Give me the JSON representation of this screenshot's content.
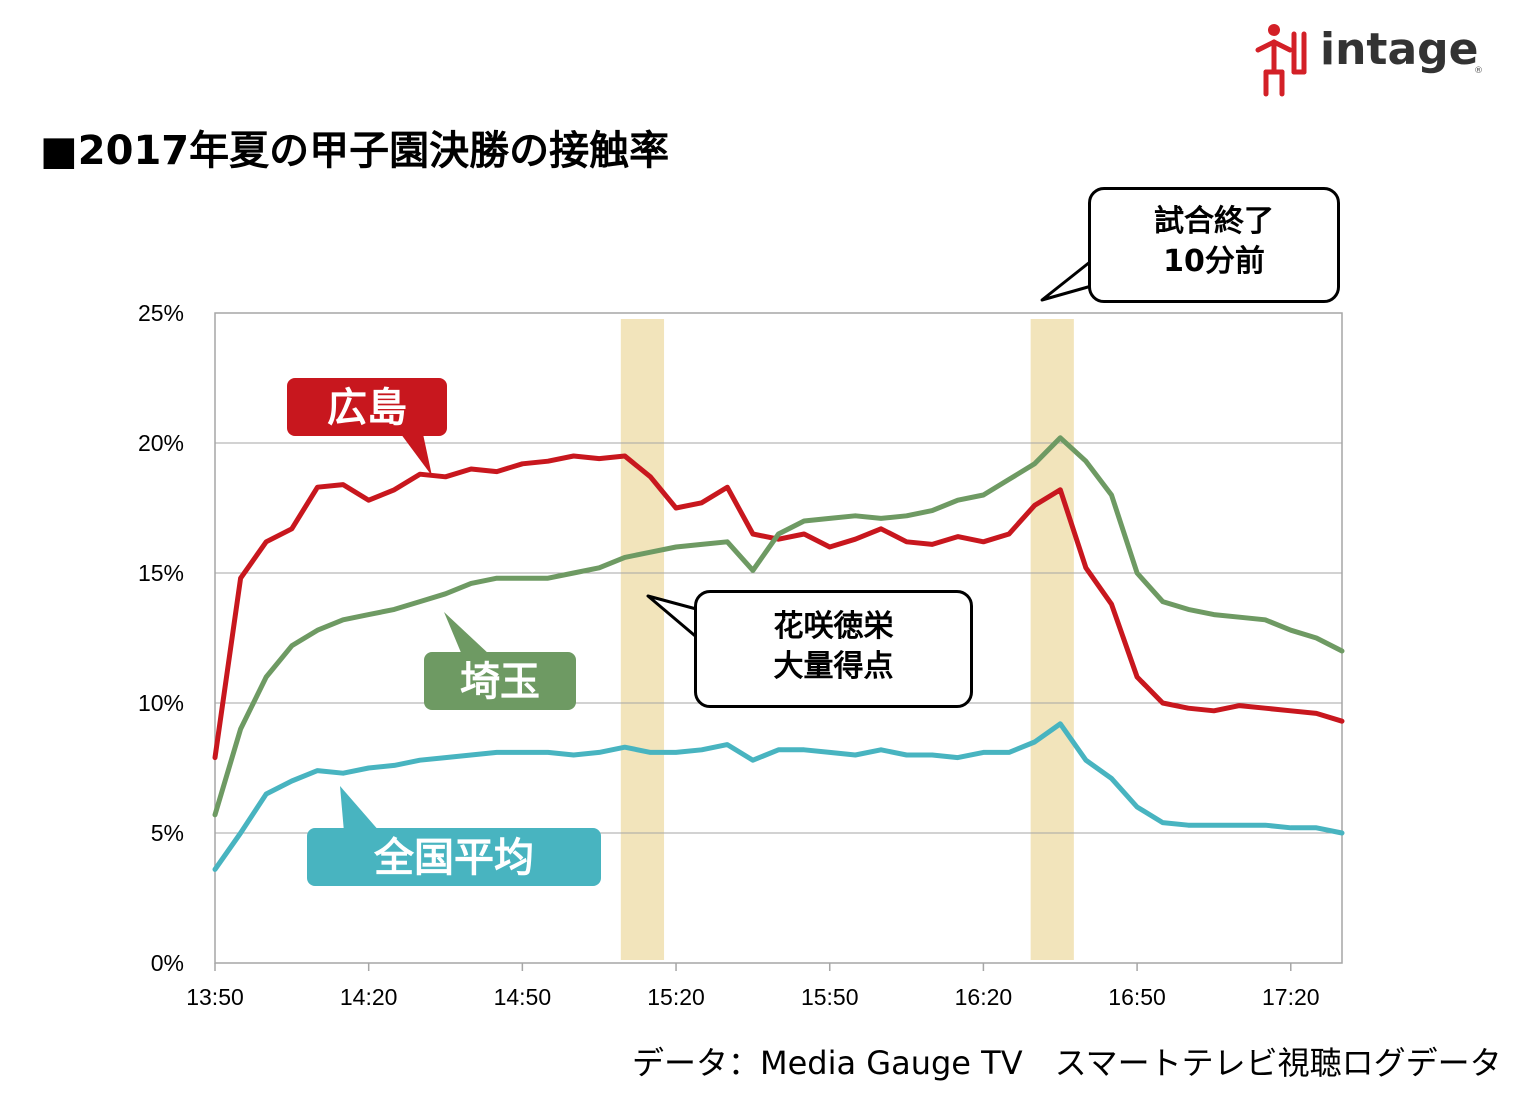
{
  "logo": {
    "text": "intage",
    "mark": "®",
    "icon": "person-figure-icon"
  },
  "title": "■2017年夏の甲子園決勝の接触率",
  "callouts": {
    "end": [
      "試合終了",
      "10分前"
    ],
    "mid": [
      "花咲徳栄",
      "大量得点"
    ]
  },
  "source": "データ：Media Gauge TV　スマートテレビ視聴ログデータ",
  "colors": {
    "hiroshima": "#c8171e",
    "saitama": "#6e9a63",
    "national": "#48b4c0",
    "highlight": "#f2e4bb",
    "grid": "#a6a6a6"
  },
  "chart_data": {
    "type": "line",
    "x_ticks": [
      "13:50",
      "14:20",
      "14:50",
      "15:20",
      "15:50",
      "16:20",
      "16:50",
      "17:20"
    ],
    "y_ticks": [
      "0%",
      "5%",
      "10%",
      "15%",
      "20%",
      "25%"
    ],
    "xlim": [
      "13:50",
      "17:30"
    ],
    "ylim": [
      0,
      25
    ],
    "grid": "horizontal",
    "highlights": [
      {
        "from": "15:10",
        "to": "15:20"
      },
      {
        "from": "16:30",
        "to": "16:40"
      }
    ],
    "x": [
      "13:50",
      "13:55",
      "14:00",
      "14:05",
      "14:10",
      "14:15",
      "14:20",
      "14:25",
      "14:30",
      "14:35",
      "14:40",
      "14:45",
      "14:50",
      "14:55",
      "15:00",
      "15:05",
      "15:10",
      "15:15",
      "15:20",
      "15:25",
      "15:30",
      "15:35",
      "15:40",
      "15:45",
      "15:50",
      "15:55",
      "16:00",
      "16:05",
      "16:10",
      "16:15",
      "16:20",
      "16:25",
      "16:30",
      "16:35",
      "16:40",
      "16:45",
      "16:50",
      "16:55",
      "17:00",
      "17:05",
      "17:10",
      "17:15",
      "17:20",
      "17:25",
      "17:30"
    ],
    "series": [
      {
        "name": "広島",
        "values": [
          7.9,
          14.8,
          16.2,
          16.7,
          18.3,
          18.4,
          17.8,
          18.2,
          18.8,
          18.7,
          19.0,
          18.9,
          19.2,
          19.3,
          19.5,
          19.4,
          19.5,
          18.7,
          17.5,
          17.7,
          18.3,
          16.5,
          16.3,
          16.5,
          16.0,
          16.3,
          16.7,
          16.2,
          16.1,
          16.4,
          16.2,
          16.5,
          17.6,
          18.2,
          15.2,
          13.8,
          11.0,
          10.0,
          9.8,
          9.7,
          9.9,
          9.8,
          9.7,
          9.6,
          9.3
        ]
      },
      {
        "name": "埼玉",
        "values": [
          5.7,
          9.0,
          11.0,
          12.2,
          12.8,
          13.2,
          13.4,
          13.6,
          13.9,
          14.2,
          14.6,
          14.8,
          14.8,
          14.8,
          15.0,
          15.2,
          15.6,
          15.8,
          16.0,
          16.1,
          16.2,
          15.1,
          16.5,
          17.0,
          17.1,
          17.2,
          17.1,
          17.2,
          17.4,
          17.8,
          18.0,
          18.6,
          19.2,
          20.2,
          19.3,
          18.0,
          15.0,
          13.9,
          13.6,
          13.4,
          13.3,
          13.2,
          12.8,
          12.5,
          12.0
        ]
      },
      {
        "name": "全国平均",
        "values": [
          3.6,
          5.0,
          6.5,
          7.0,
          7.4,
          7.3,
          7.5,
          7.6,
          7.8,
          7.9,
          8.0,
          8.1,
          8.1,
          8.1,
          8.0,
          8.1,
          8.3,
          8.1,
          8.1,
          8.2,
          8.4,
          7.8,
          8.2,
          8.2,
          8.1,
          8.0,
          8.2,
          8.0,
          8.0,
          7.9,
          8.1,
          8.1,
          8.5,
          9.2,
          7.8,
          7.1,
          6.0,
          5.4,
          5.3,
          5.3,
          5.3,
          5.3,
          5.2,
          5.2,
          5.0
        ]
      }
    ]
  }
}
